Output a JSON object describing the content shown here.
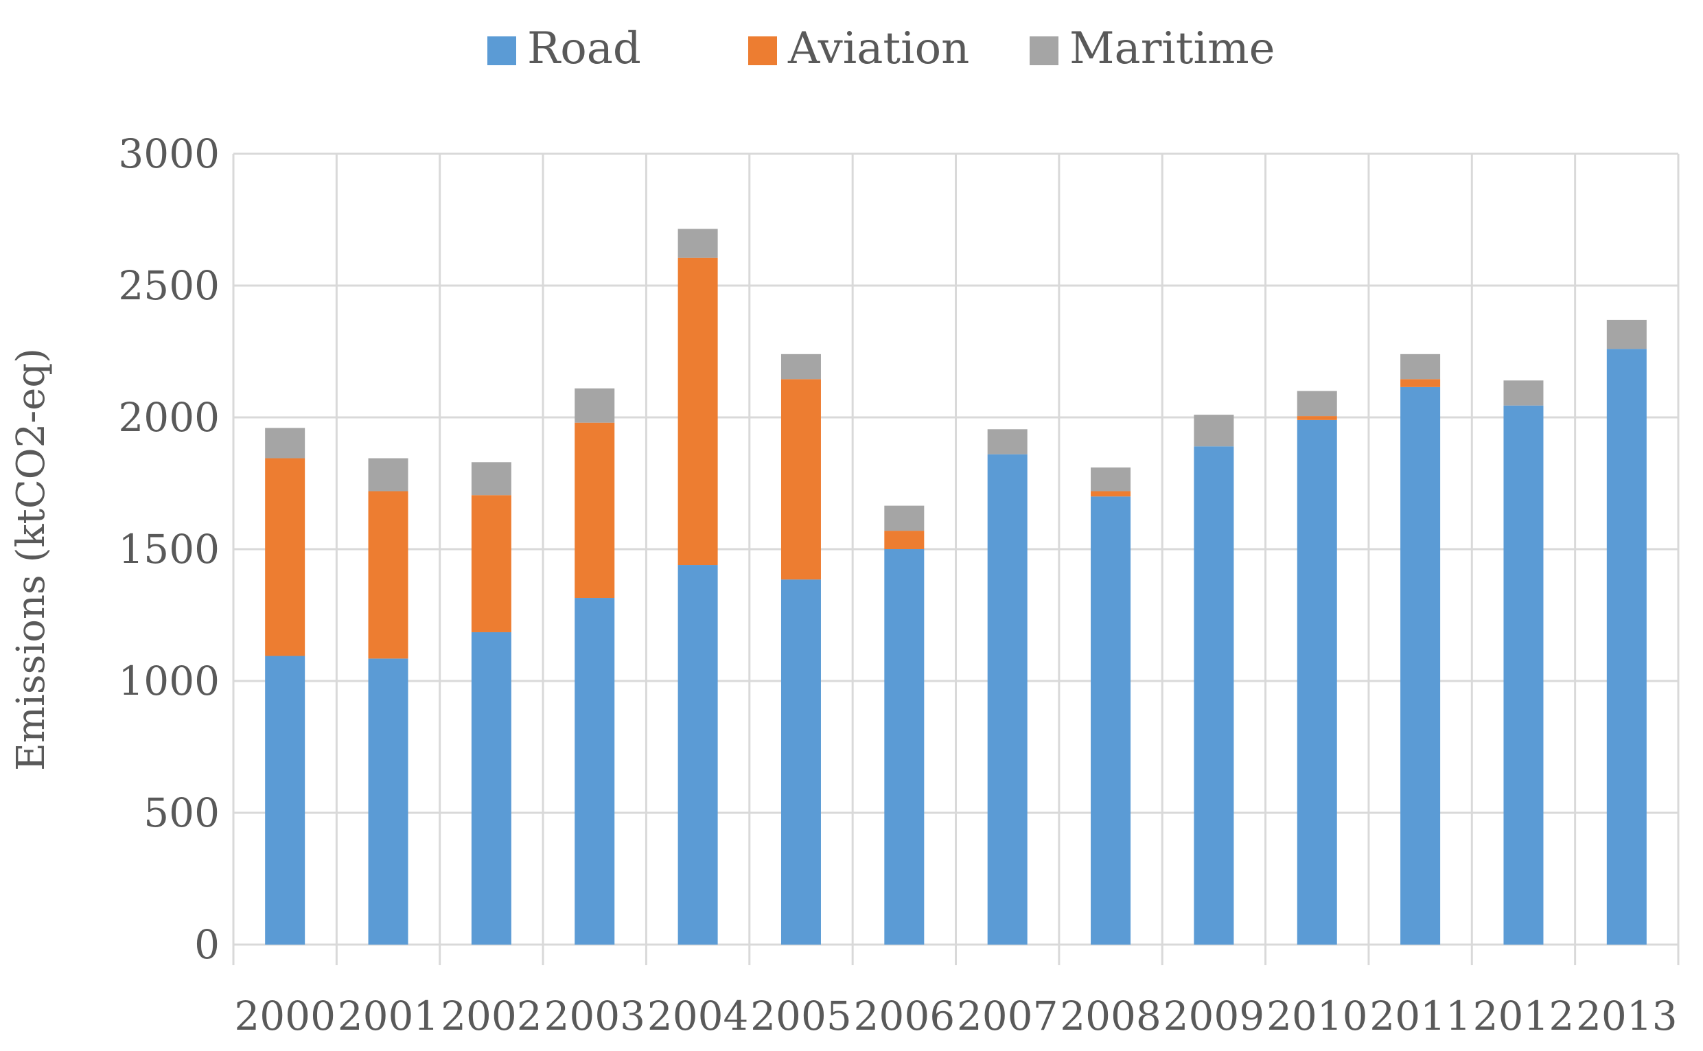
{
  "chart_data": {
    "type": "bar",
    "stacked": true,
    "title": "",
    "xlabel": "",
    "ylabel": "Emissions (ktCO2-eq)",
    "ylim": [
      0,
      3000
    ],
    "yticks": [
      0,
      500,
      1000,
      1500,
      2000,
      2500,
      3000
    ],
    "grid": true,
    "legend_position": "top-center",
    "categories": [
      "2000",
      "2001",
      "2002",
      "2003",
      "2004",
      "2005",
      "2006",
      "2007",
      "2008",
      "2009",
      "2010",
      "2011",
      "2012",
      "2013"
    ],
    "series": [
      {
        "name": "Road",
        "color": "#5b9bd5",
        "values": [
          1095,
          1085,
          1185,
          1315,
          1440,
          1385,
          1500,
          1860,
          1700,
          1890,
          1990,
          2115,
          2045,
          2260
        ]
      },
      {
        "name": "Aviation",
        "color": "#ed7d31",
        "values": [
          750,
          635,
          520,
          665,
          1165,
          760,
          70,
          0,
          20,
          0,
          15,
          30,
          0,
          0
        ]
      },
      {
        "name": "Maritime",
        "color": "#a5a5a5",
        "values": [
          115,
          125,
          125,
          130,
          110,
          95,
          95,
          95,
          90,
          120,
          95,
          95,
          95,
          110
        ]
      }
    ]
  }
}
